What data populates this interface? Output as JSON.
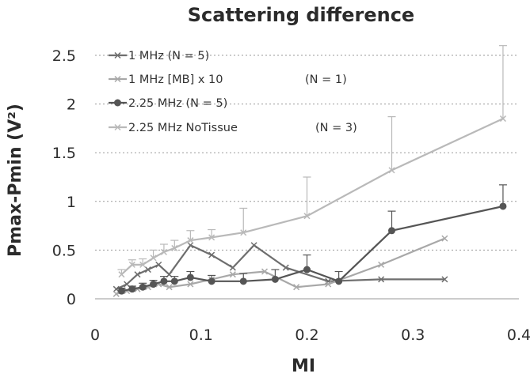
{
  "chart_data": {
    "type": "line",
    "title": "Scattering difference",
    "xlabel": "MI",
    "ylabel": "Pmax-Pmin (V²)",
    "xlim": [
      0,
      0.4
    ],
    "ylim": [
      0,
      2.5
    ],
    "x_ticks": [
      "0",
      "0.1",
      "0.2",
      "0.3",
      "0.4"
    ],
    "y_ticks": [
      "0",
      "0.5",
      "1",
      "1.5",
      "2",
      "2.5"
    ],
    "grid": "horizontal dotted",
    "legend_position": "top-left",
    "series": [
      {
        "name": "1 MHz (N = 5)",
        "color": "#6e6e6e",
        "marker": "cross",
        "x": [
          0.02,
          0.03,
          0.04,
          0.05,
          0.06,
          0.07,
          0.09,
          0.11,
          0.13,
          0.15,
          0.18,
          0.22,
          0.27,
          0.33
        ],
        "y": [
          0.1,
          0.15,
          0.25,
          0.3,
          0.35,
          0.25,
          0.55,
          0.45,
          0.32,
          0.55,
          0.32,
          0.18,
          0.2,
          0.2
        ]
      },
      {
        "name": "1 MHz [MB] x 10",
        "note": "(N = 1)",
        "color": "#a8a8a8",
        "marker": "cross",
        "x": [
          0.02,
          0.03,
          0.04,
          0.05,
          0.06,
          0.07,
          0.09,
          0.11,
          0.13,
          0.16,
          0.19,
          0.22,
          0.27,
          0.33
        ],
        "y": [
          0.05,
          0.08,
          0.1,
          0.12,
          0.15,
          0.12,
          0.15,
          0.2,
          0.25,
          0.28,
          0.12,
          0.15,
          0.35,
          0.62
        ]
      },
      {
        "name": "2.25 MHz (N = 5)",
        "color": "#555555",
        "marker": "circle",
        "x": [
          0.025,
          0.035,
          0.045,
          0.055,
          0.065,
          0.075,
          0.09,
          0.11,
          0.14,
          0.17,
          0.2,
          0.23,
          0.28,
          0.385
        ],
        "y": [
          0.08,
          0.1,
          0.12,
          0.15,
          0.18,
          0.18,
          0.22,
          0.18,
          0.18,
          0.2,
          0.3,
          0.18,
          0.7,
          0.95
        ],
        "err": [
          0.03,
          0.03,
          0.04,
          0.04,
          0.05,
          0.05,
          0.06,
          0.06,
          0.08,
          0.1,
          0.15,
          0.1,
          0.2,
          0.22
        ]
      },
      {
        "name": "2.25 MHz NoTissue",
        "note": "(N = 3)",
        "color": "#b9b9b9",
        "marker": "cross",
        "x": [
          0.025,
          0.035,
          0.045,
          0.055,
          0.065,
          0.075,
          0.09,
          0.11,
          0.14,
          0.2,
          0.28,
          0.385
        ],
        "y": [
          0.25,
          0.35,
          0.35,
          0.42,
          0.48,
          0.52,
          0.6,
          0.63,
          0.68,
          0.85,
          1.32,
          1.85
        ],
        "err": [
          0.05,
          0.05,
          0.06,
          0.08,
          0.08,
          0.08,
          0.1,
          0.08,
          0.25,
          0.4,
          0.55,
          0.75
        ]
      }
    ]
  }
}
